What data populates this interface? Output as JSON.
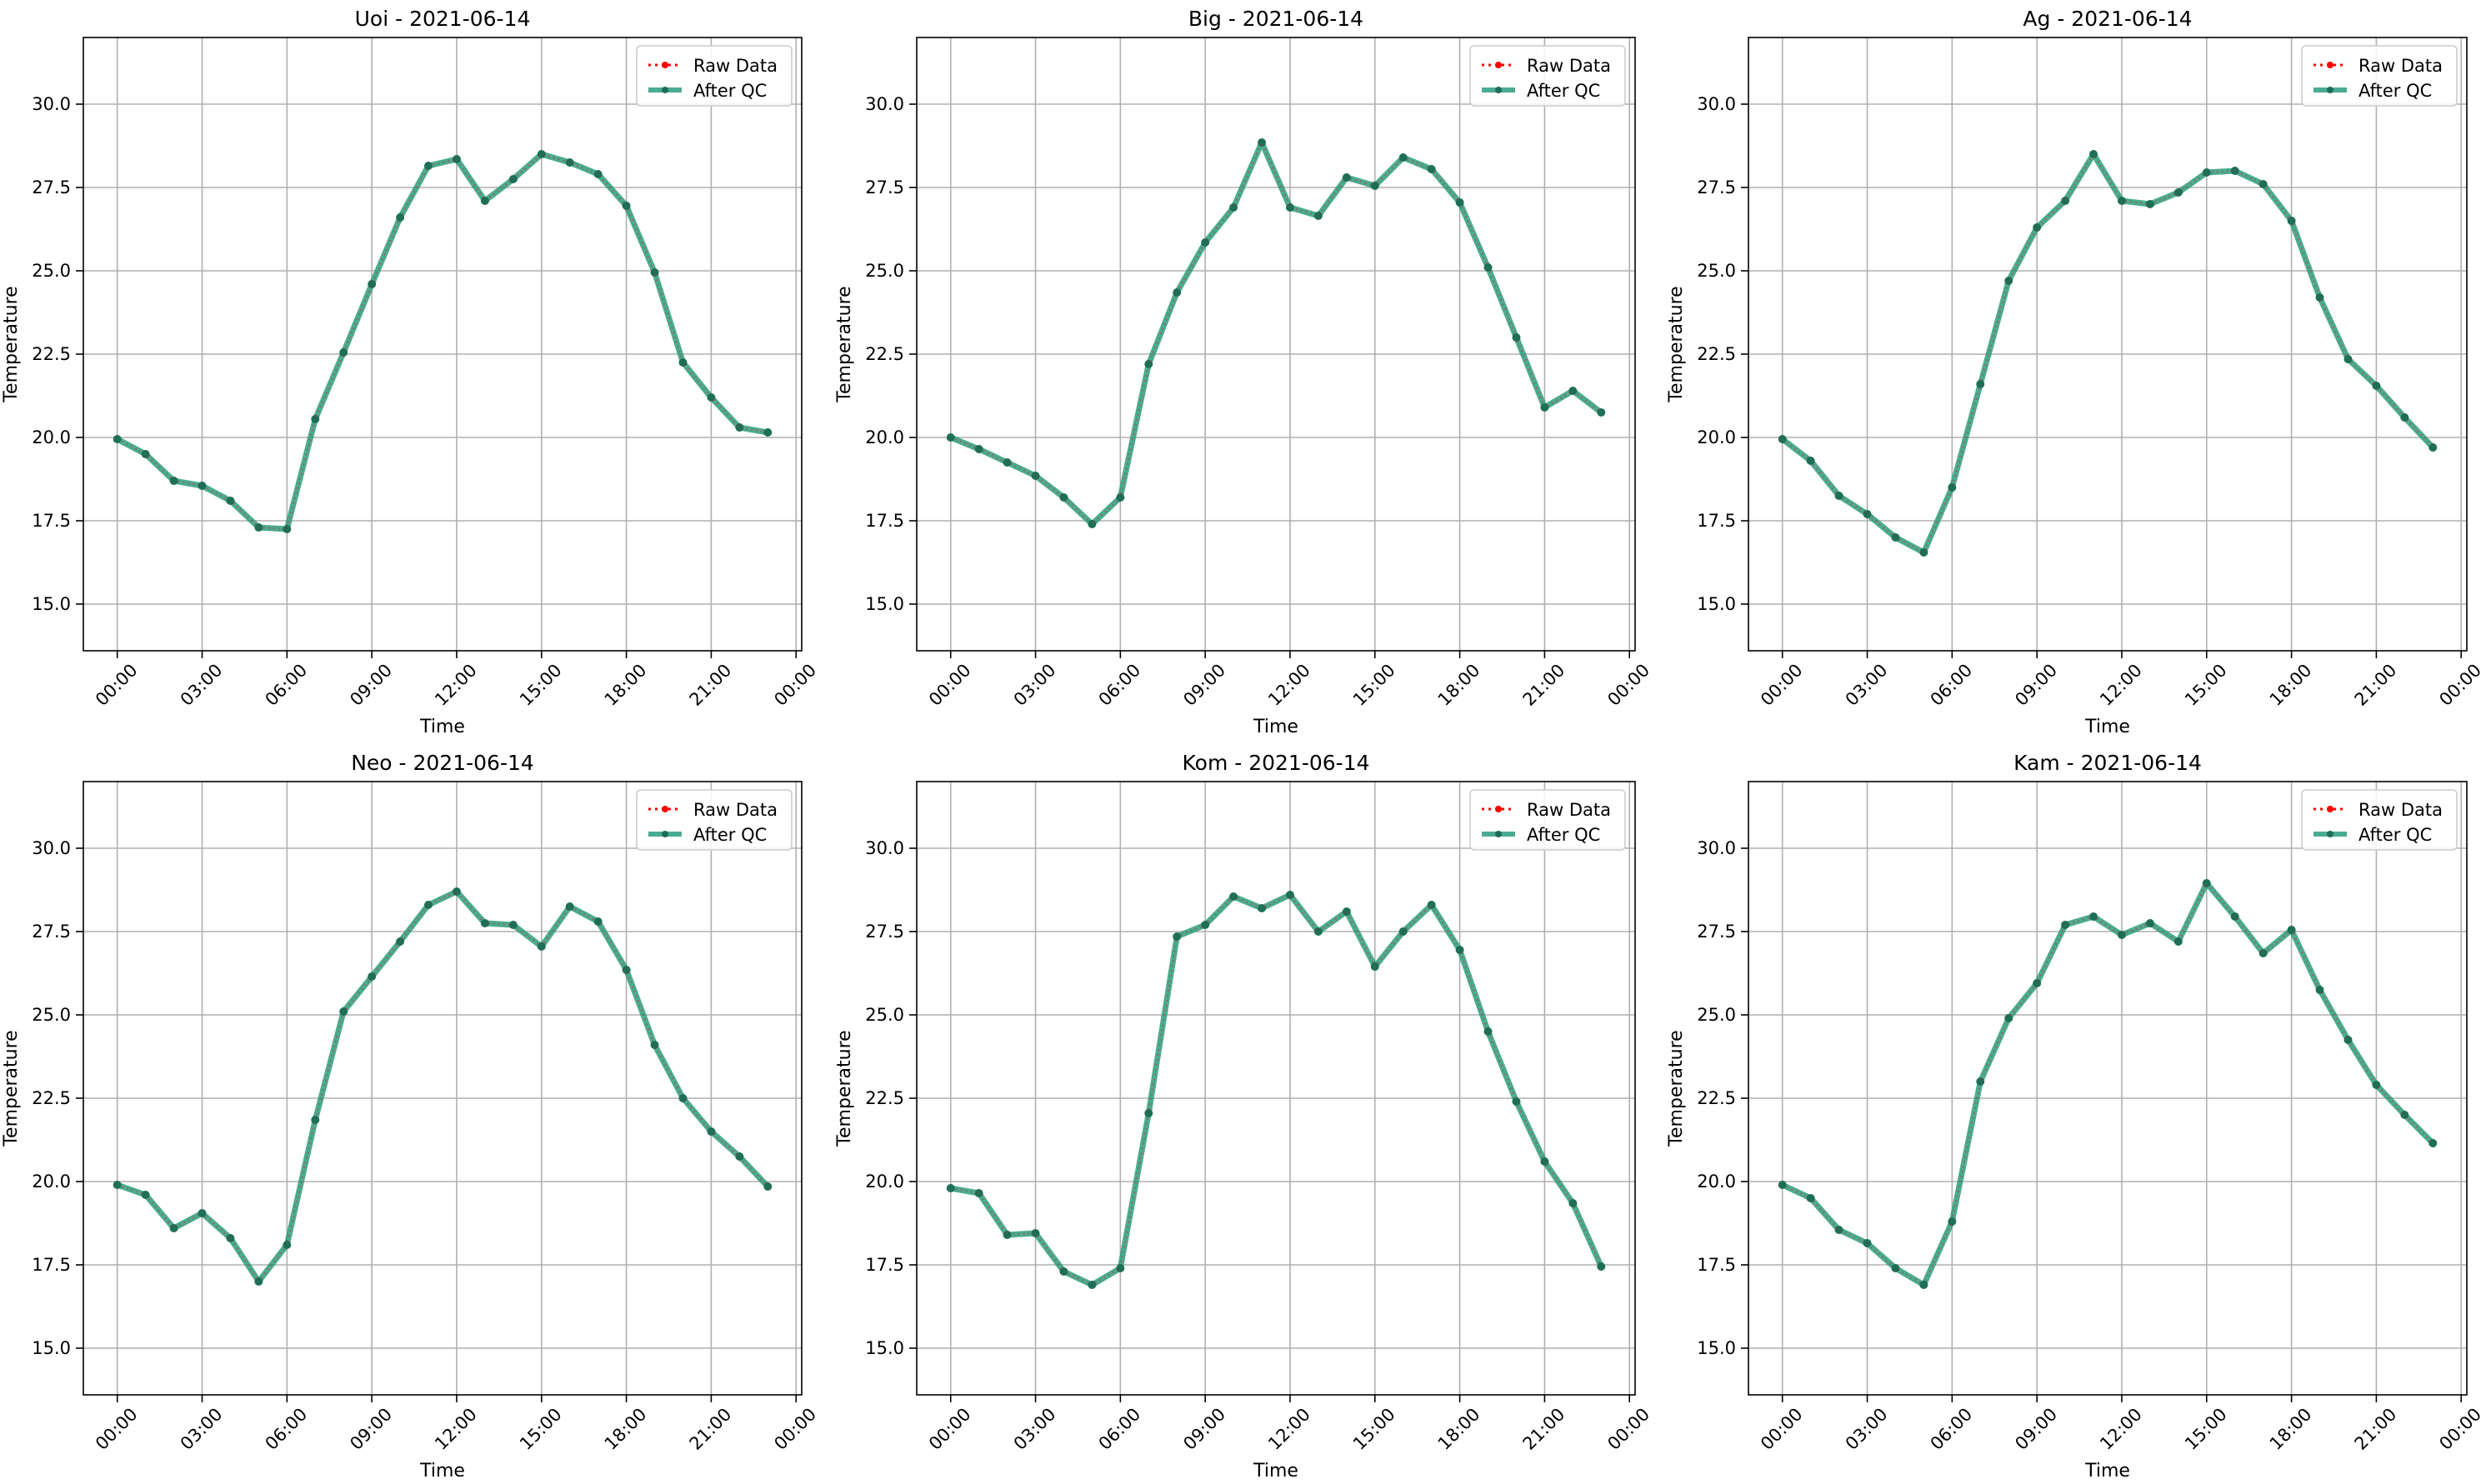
{
  "figure": {
    "colors": {
      "raw": "#ff0000",
      "qc": "#2a9d7c",
      "qc_marker": "#1f6f58",
      "grid": "#b0b0b0",
      "axis": "#000000"
    }
  },
  "chart_data": [
    {
      "type": "line",
      "title": "Uoi - 2021-06-14",
      "xlabel": "Time",
      "ylabel": "Temperature",
      "x_ticks": [
        "00:00",
        "03:00",
        "06:00",
        "09:00",
        "12:00",
        "15:00",
        "18:00",
        "21:00",
        "00:00"
      ],
      "x_tick_hours": [
        0,
        3,
        6,
        9,
        12,
        15,
        18,
        21,
        24
      ],
      "y_ticks": [
        "15.0",
        "17.5",
        "20.0",
        "22.5",
        "25.0",
        "27.5",
        "30.0"
      ],
      "xlim": [
        -1.2,
        24.2
      ],
      "ylim": [
        13.6,
        32.0
      ],
      "grid": true,
      "legend": {
        "position": "top-right",
        "entries": [
          "Raw Data",
          "After QC"
        ]
      },
      "x": [
        0,
        1,
        2,
        3,
        4,
        5,
        6,
        7,
        8,
        9,
        10,
        11,
        12,
        13,
        14,
        15,
        16,
        17,
        18,
        19,
        20,
        21,
        22,
        23
      ],
      "series": [
        {
          "name": "Raw Data",
          "values": [
            19.95,
            19.5,
            18.7,
            18.55,
            18.1,
            17.3,
            17.25,
            20.55,
            22.55,
            24.6,
            26.6,
            28.15,
            28.35,
            27.1,
            27.75,
            28.5,
            28.25,
            27.9,
            26.95,
            24.95,
            22.25,
            21.2,
            20.3,
            20.15
          ]
        },
        {
          "name": "After QC",
          "values": [
            19.95,
            19.5,
            18.7,
            18.55,
            18.1,
            17.3,
            17.25,
            20.55,
            22.55,
            24.6,
            26.6,
            28.15,
            28.35,
            27.1,
            27.75,
            28.5,
            28.25,
            27.9,
            26.95,
            24.95,
            22.25,
            21.2,
            20.3,
            20.15
          ]
        }
      ]
    },
    {
      "type": "line",
      "title": "Big - 2021-06-14",
      "xlabel": "Time",
      "ylabel": "Temperature",
      "x_ticks": [
        "00:00",
        "03:00",
        "06:00",
        "09:00",
        "12:00",
        "15:00",
        "18:00",
        "21:00",
        "00:00"
      ],
      "x_tick_hours": [
        0,
        3,
        6,
        9,
        12,
        15,
        18,
        21,
        24
      ],
      "y_ticks": [
        "15.0",
        "17.5",
        "20.0",
        "22.5",
        "25.0",
        "27.5",
        "30.0"
      ],
      "xlim": [
        -1.2,
        24.2
      ],
      "ylim": [
        13.6,
        32.0
      ],
      "grid": true,
      "legend": {
        "position": "top-right",
        "entries": [
          "Raw Data",
          "After QC"
        ]
      },
      "x": [
        0,
        1,
        2,
        3,
        4,
        5,
        6,
        7,
        8,
        9,
        10,
        11,
        12,
        13,
        14,
        15,
        16,
        17,
        18,
        19,
        20,
        21,
        22,
        23
      ],
      "series": [
        {
          "name": "Raw Data",
          "values": [
            20.0,
            19.65,
            19.25,
            18.85,
            18.2,
            17.4,
            18.2,
            22.2,
            24.35,
            25.85,
            26.9,
            28.85,
            26.9,
            26.65,
            27.8,
            27.55,
            28.4,
            28.05,
            27.05,
            25.1,
            23.0,
            20.9,
            21.4,
            20.75
          ]
        },
        {
          "name": "After QC",
          "values": [
            20.0,
            19.65,
            19.25,
            18.85,
            18.2,
            17.4,
            18.2,
            22.2,
            24.35,
            25.85,
            26.9,
            28.85,
            26.9,
            26.65,
            27.8,
            27.55,
            28.4,
            28.05,
            27.05,
            25.1,
            23.0,
            20.9,
            21.4,
            20.75
          ]
        }
      ]
    },
    {
      "type": "line",
      "title": "Ag - 2021-06-14",
      "xlabel": "Time",
      "ylabel": "Temperature",
      "x_ticks": [
        "00:00",
        "03:00",
        "06:00",
        "09:00",
        "12:00",
        "15:00",
        "18:00",
        "21:00",
        "00:00"
      ],
      "x_tick_hours": [
        0,
        3,
        6,
        9,
        12,
        15,
        18,
        21,
        24
      ],
      "y_ticks": [
        "15.0",
        "17.5",
        "20.0",
        "22.5",
        "25.0",
        "27.5",
        "30.0"
      ],
      "xlim": [
        -1.2,
        24.2
      ],
      "ylim": [
        13.6,
        32.0
      ],
      "grid": true,
      "legend": {
        "position": "top-right",
        "entries": [
          "Raw Data",
          "After QC"
        ]
      },
      "x": [
        0,
        1,
        2,
        3,
        4,
        5,
        6,
        7,
        8,
        9,
        10,
        11,
        12,
        13,
        14,
        15,
        16,
        17,
        18,
        19,
        20,
        21,
        22,
        23
      ],
      "series": [
        {
          "name": "Raw Data",
          "values": [
            19.95,
            19.3,
            18.25,
            17.7,
            17.0,
            16.55,
            18.5,
            21.6,
            24.7,
            26.3,
            27.1,
            28.5,
            27.1,
            27.0,
            27.35,
            27.95,
            28.0,
            27.6,
            26.5,
            24.2,
            22.35,
            21.55,
            20.6,
            19.7
          ]
        },
        {
          "name": "After QC",
          "values": [
            19.95,
            19.3,
            18.25,
            17.7,
            17.0,
            16.55,
            18.5,
            21.6,
            24.7,
            26.3,
            27.1,
            28.5,
            27.1,
            27.0,
            27.35,
            27.95,
            28.0,
            27.6,
            26.5,
            24.2,
            22.35,
            21.55,
            20.6,
            19.7
          ]
        }
      ]
    },
    {
      "type": "line",
      "title": "Neo - 2021-06-14",
      "xlabel": "Time",
      "ylabel": "Temperature",
      "x_ticks": [
        "00:00",
        "03:00",
        "06:00",
        "09:00",
        "12:00",
        "15:00",
        "18:00",
        "21:00",
        "00:00"
      ],
      "x_tick_hours": [
        0,
        3,
        6,
        9,
        12,
        15,
        18,
        21,
        24
      ],
      "y_ticks": [
        "15.0",
        "17.5",
        "20.0",
        "22.5",
        "25.0",
        "27.5",
        "30.0"
      ],
      "xlim": [
        -1.2,
        24.2
      ],
      "ylim": [
        13.6,
        32.0
      ],
      "grid": true,
      "legend": {
        "position": "top-right",
        "entries": [
          "Raw Data",
          "After QC"
        ]
      },
      "x": [
        0,
        1,
        2,
        3,
        4,
        5,
        6,
        7,
        8,
        9,
        10,
        11,
        12,
        13,
        14,
        15,
        16,
        17,
        18,
        19,
        20,
        21,
        22,
        23
      ],
      "series": [
        {
          "name": "Raw Data",
          "values": [
            19.9,
            19.6,
            18.6,
            19.05,
            18.3,
            17.0,
            18.1,
            21.85,
            25.1,
            26.15,
            27.2,
            28.3,
            28.7,
            27.75,
            27.7,
            27.05,
            28.25,
            27.8,
            26.35,
            24.1,
            22.5,
            21.5,
            20.75,
            19.85
          ]
        },
        {
          "name": "After QC",
          "values": [
            19.9,
            19.6,
            18.6,
            19.05,
            18.3,
            17.0,
            18.1,
            21.85,
            25.1,
            26.15,
            27.2,
            28.3,
            28.7,
            27.75,
            27.7,
            27.05,
            28.25,
            27.8,
            26.35,
            24.1,
            22.5,
            21.5,
            20.75,
            19.85
          ]
        }
      ]
    },
    {
      "type": "line",
      "title": "Kom - 2021-06-14",
      "xlabel": "Time",
      "ylabel": "Temperature",
      "x_ticks": [
        "00:00",
        "03:00",
        "06:00",
        "09:00",
        "12:00",
        "15:00",
        "18:00",
        "21:00",
        "00:00"
      ],
      "x_tick_hours": [
        0,
        3,
        6,
        9,
        12,
        15,
        18,
        21,
        24
      ],
      "y_ticks": [
        "15.0",
        "17.5",
        "20.0",
        "22.5",
        "25.0",
        "27.5",
        "30.0"
      ],
      "xlim": [
        -1.2,
        24.2
      ],
      "ylim": [
        13.6,
        32.0
      ],
      "grid": true,
      "legend": {
        "position": "top-right",
        "entries": [
          "Raw Data",
          "After QC"
        ]
      },
      "x": [
        0,
        1,
        2,
        3,
        4,
        5,
        6,
        7,
        8,
        9,
        10,
        11,
        12,
        13,
        14,
        15,
        16,
        17,
        18,
        19,
        20,
        21,
        22,
        23
      ],
      "series": [
        {
          "name": "Raw Data",
          "values": [
            19.8,
            19.65,
            18.4,
            18.45,
            17.3,
            16.9,
            17.4,
            22.05,
            27.35,
            27.7,
            28.55,
            28.2,
            28.6,
            27.5,
            28.1,
            26.45,
            27.5,
            28.3,
            26.95,
            24.5,
            22.4,
            20.6,
            19.35,
            17.45
          ]
        },
        {
          "name": "After QC",
          "values": [
            19.8,
            19.65,
            18.4,
            18.45,
            17.3,
            16.9,
            17.4,
            22.05,
            27.35,
            27.7,
            28.55,
            28.2,
            28.6,
            27.5,
            28.1,
            26.45,
            27.5,
            28.3,
            26.95,
            24.5,
            22.4,
            20.6,
            19.35,
            17.45
          ]
        }
      ]
    },
    {
      "type": "line",
      "title": "Kam - 2021-06-14",
      "xlabel": "Time",
      "ylabel": "Temperature",
      "x_ticks": [
        "00:00",
        "03:00",
        "06:00",
        "09:00",
        "12:00",
        "15:00",
        "18:00",
        "21:00",
        "00:00"
      ],
      "x_tick_hours": [
        0,
        3,
        6,
        9,
        12,
        15,
        18,
        21,
        24
      ],
      "y_ticks": [
        "15.0",
        "17.5",
        "20.0",
        "22.5",
        "25.0",
        "27.5",
        "30.0"
      ],
      "xlim": [
        -1.2,
        24.2
      ],
      "ylim": [
        13.6,
        32.0
      ],
      "grid": true,
      "legend": {
        "position": "top-right",
        "entries": [
          "Raw Data",
          "After QC"
        ]
      },
      "x": [
        0,
        1,
        2,
        3,
        4,
        5,
        6,
        7,
        8,
        9,
        10,
        11,
        12,
        13,
        14,
        15,
        16,
        17,
        18,
        19,
        20,
        21,
        22,
        23
      ],
      "series": [
        {
          "name": "Raw Data",
          "values": [
            19.9,
            19.5,
            18.55,
            18.15,
            17.4,
            16.9,
            18.8,
            23.0,
            24.9,
            25.95,
            27.7,
            27.95,
            27.4,
            27.75,
            27.2,
            28.95,
            27.95,
            26.85,
            27.55,
            25.75,
            24.25,
            22.9,
            22.0,
            21.15
          ]
        },
        {
          "name": "After QC",
          "values": [
            19.9,
            19.5,
            18.55,
            18.15,
            17.4,
            16.9,
            18.8,
            23.0,
            24.9,
            25.95,
            27.7,
            27.95,
            27.4,
            27.75,
            27.2,
            28.95,
            27.95,
            26.85,
            27.55,
            25.75,
            24.25,
            22.9,
            22.0,
            21.15
          ]
        }
      ]
    }
  ]
}
